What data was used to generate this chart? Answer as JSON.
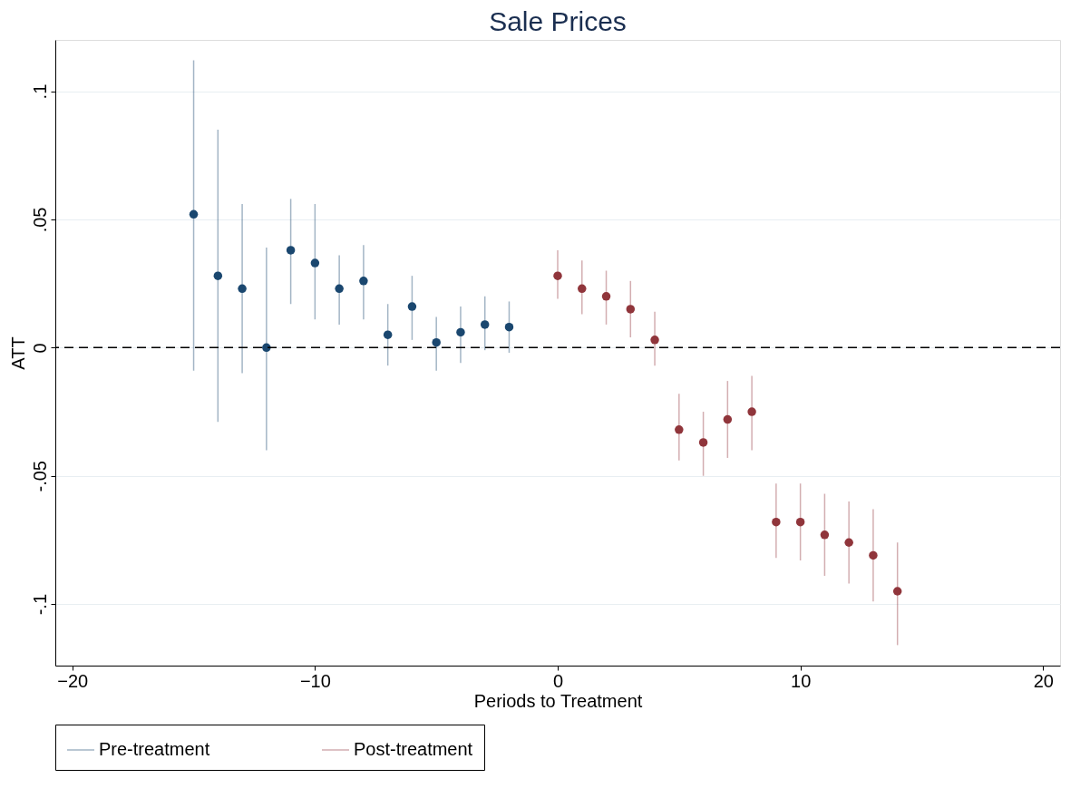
{
  "chart_data": {
    "type": "scatter",
    "title": "Sale Prices",
    "xlabel": "Periods to Treatment",
    "ylabel": "ATT",
    "xlim": [
      -20.7,
      20.7
    ],
    "xticks": [
      -20,
      -10,
      0,
      10,
      20
    ],
    "ylim": [
      -0.124,
      0.12
    ],
    "yticks": [
      {
        "value": 0.1,
        "label": ".1"
      },
      {
        "value": 0.05,
        "label": ".05"
      },
      {
        "value": 0,
        "label": "0"
      },
      {
        "value": -0.05,
        "label": "-.05"
      },
      {
        "value": -0.1,
        "label": "-.1"
      }
    ],
    "grid": "y",
    "legend": "bottom",
    "marker": "circle",
    "ref_lines": [
      {
        "axis": "y",
        "value": 0,
        "color": "#000000",
        "line_style": "dashed"
      }
    ],
    "series": [
      {
        "name": "Pre-treatment",
        "color": "#1a476f",
        "x": [
          -15,
          -14,
          -13,
          -12,
          -11,
          -10,
          -9,
          -8,
          -7,
          -6,
          -5,
          -4,
          -3,
          -2
        ],
        "values": [
          0.052,
          0.028,
          0.023,
          0.0,
          0.038,
          0.033,
          0.023,
          0.026,
          0.005,
          0.016,
          0.002,
          0.006,
          0.009,
          0.008
        ],
        "errors": [
          [
            -0.009,
            0.112
          ],
          [
            -0.029,
            0.085
          ],
          [
            -0.01,
            0.056
          ],
          [
            -0.04,
            0.039
          ],
          [
            0.017,
            0.058
          ],
          [
            0.011,
            0.056
          ],
          [
            0.009,
            0.036
          ],
          [
            0.011,
            0.04
          ],
          [
            -0.007,
            0.017
          ],
          [
            0.003,
            0.028
          ],
          [
            -0.009,
            0.012
          ],
          [
            -0.006,
            0.016
          ],
          [
            -0.001,
            0.02
          ],
          [
            -0.002,
            0.018
          ]
        ]
      },
      {
        "name": "Post-treatment",
        "color": "#90353b",
        "x": [
          0,
          1,
          2,
          3,
          4,
          5,
          6,
          7,
          8,
          9,
          10,
          11,
          12,
          13,
          14
        ],
        "values": [
          0.028,
          0.023,
          0.02,
          0.015,
          0.003,
          -0.032,
          -0.037,
          -0.028,
          -0.025,
          -0.068,
          -0.068,
          -0.073,
          -0.076,
          -0.081,
          -0.095
        ],
        "errors": [
          [
            0.019,
            0.038
          ],
          [
            0.013,
            0.034
          ],
          [
            0.009,
            0.03
          ],
          [
            0.004,
            0.026
          ],
          [
            -0.007,
            0.014
          ],
          [
            -0.044,
            -0.018
          ],
          [
            -0.05,
            -0.025
          ],
          [
            -0.043,
            -0.013
          ],
          [
            -0.04,
            -0.011
          ],
          [
            -0.082,
            -0.053
          ],
          [
            -0.083,
            -0.053
          ],
          [
            -0.089,
            -0.057
          ],
          [
            -0.092,
            -0.06
          ],
          [
            -0.099,
            -0.063
          ],
          [
            -0.116,
            -0.076
          ]
        ]
      }
    ]
  }
}
